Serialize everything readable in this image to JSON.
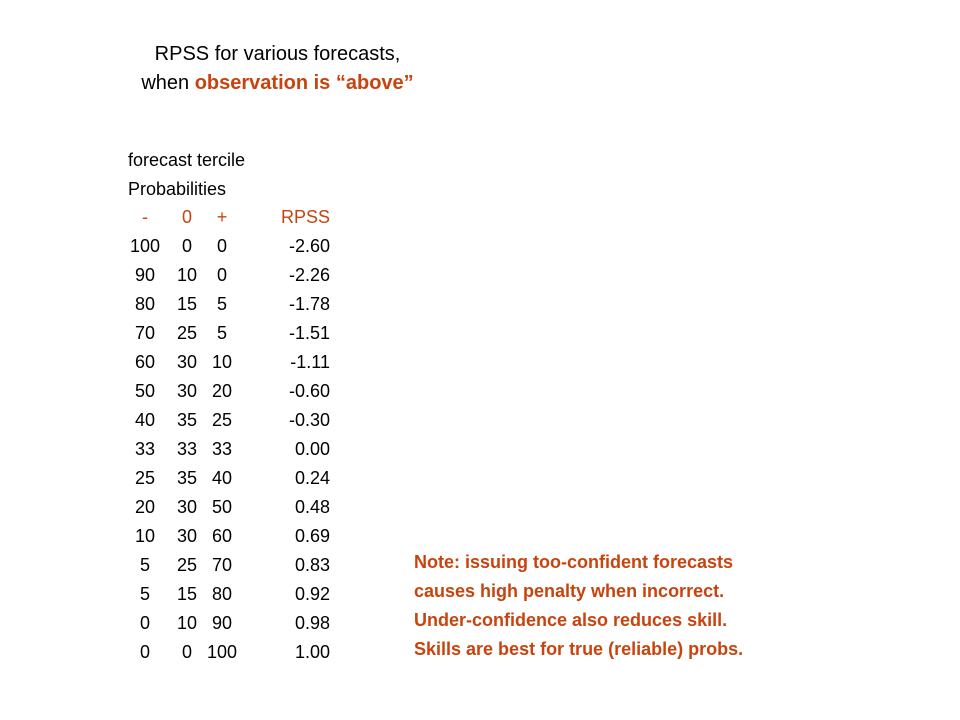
{
  "title": {
    "line1": "RPSS for various forecasts,",
    "line2_prefix": "when ",
    "line2_emphasis": "observation is “above”"
  },
  "table": {
    "heading_line1": "forecast tercile",
    "heading_line2": "Probabilities",
    "columns": [
      "-",
      "0",
      "+",
      "RPSS"
    ],
    "rows": [
      [
        "100",
        "0",
        "0",
        "-2.60"
      ],
      [
        "90",
        "10",
        "0",
        "-2.26"
      ],
      [
        "80",
        "15",
        "5",
        "-1.78"
      ],
      [
        "70",
        "25",
        "5",
        "-1.51"
      ],
      [
        "60",
        "30",
        "10",
        "-1.11"
      ],
      [
        "50",
        "30",
        "20",
        "-0.60"
      ],
      [
        "40",
        "35",
        "25",
        "-0.30"
      ],
      [
        "33",
        "33",
        "33",
        "0.00"
      ],
      [
        "25",
        "35",
        "40",
        "0.24"
      ],
      [
        "20",
        "30",
        "50",
        "0.48"
      ],
      [
        "10",
        "30",
        "60",
        "0.69"
      ],
      [
        "5",
        "25",
        "70",
        "0.83"
      ],
      [
        "5",
        "15",
        "80",
        "0.92"
      ],
      [
        "0",
        "10",
        "90",
        "0.98"
      ],
      [
        "0",
        "0",
        "100",
        "1.00"
      ]
    ]
  },
  "note": [
    "Note: issuing too-confident forecasts",
    "causes high penalty when incorrect.",
    "Under-confidence also reduces skill.",
    "Skills are best for true (reliable) probs."
  ],
  "colors": {
    "accent": "#c8430e",
    "text": "#000000",
    "background": "#ffffff"
  }
}
